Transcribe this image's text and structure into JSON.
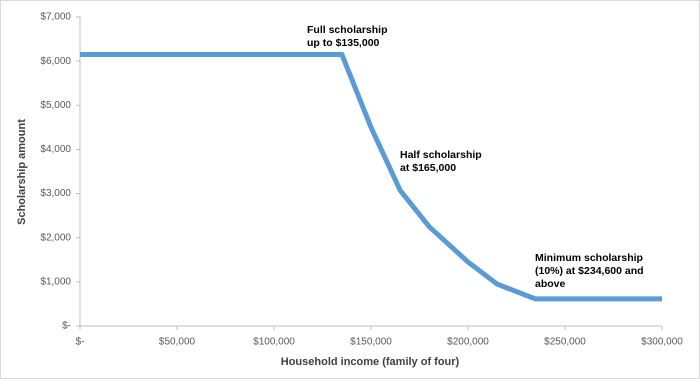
{
  "chart_data": {
    "type": "line",
    "x_label": "Household income (family of four)",
    "y_label": "Scholarship amount",
    "series": [
      {
        "name": "Scholarship",
        "color": "#5b9bd5",
        "x": [
          0,
          135000,
          150000,
          165000,
          180000,
          200000,
          215000,
          234600,
          300000
        ],
        "values": [
          6150,
          6150,
          4500,
          3075,
          2250,
          1450,
          950,
          615,
          615
        ]
      }
    ],
    "xlim": [
      0,
      300000
    ],
    "xticks": [
      {
        "value": 0,
        "label": "$-"
      },
      {
        "value": 50000,
        "label": "$50,000"
      },
      {
        "value": 100000,
        "label": "$100,000"
      },
      {
        "value": 150000,
        "label": "$150,000"
      },
      {
        "value": 200000,
        "label": "$200,000"
      },
      {
        "value": 250000,
        "label": "$250,000"
      },
      {
        "value": 300000,
        "label": "$300,000"
      }
    ],
    "ylim": [
      0,
      7000
    ],
    "yticks": [
      {
        "value": 0,
        "label": "$-"
      },
      {
        "value": 1000,
        "label": "$1,000"
      },
      {
        "value": 2000,
        "label": "$2,000"
      },
      {
        "value": 3000,
        "label": "$3,000"
      },
      {
        "value": 4000,
        "label": "$4,000"
      },
      {
        "value": 5000,
        "label": "$5,000"
      },
      {
        "value": 6000,
        "label": "$6,000"
      },
      {
        "value": 7000,
        "label": "$7,000"
      }
    ],
    "grid": false,
    "annotations": [
      [
        "Full scholarship",
        "up to $135,000"
      ],
      [
        "Half scholarship",
        "at $165,000"
      ],
      [
        "Minimum scholarship",
        "(10%) at $234,600 and",
        "above"
      ]
    ]
  }
}
